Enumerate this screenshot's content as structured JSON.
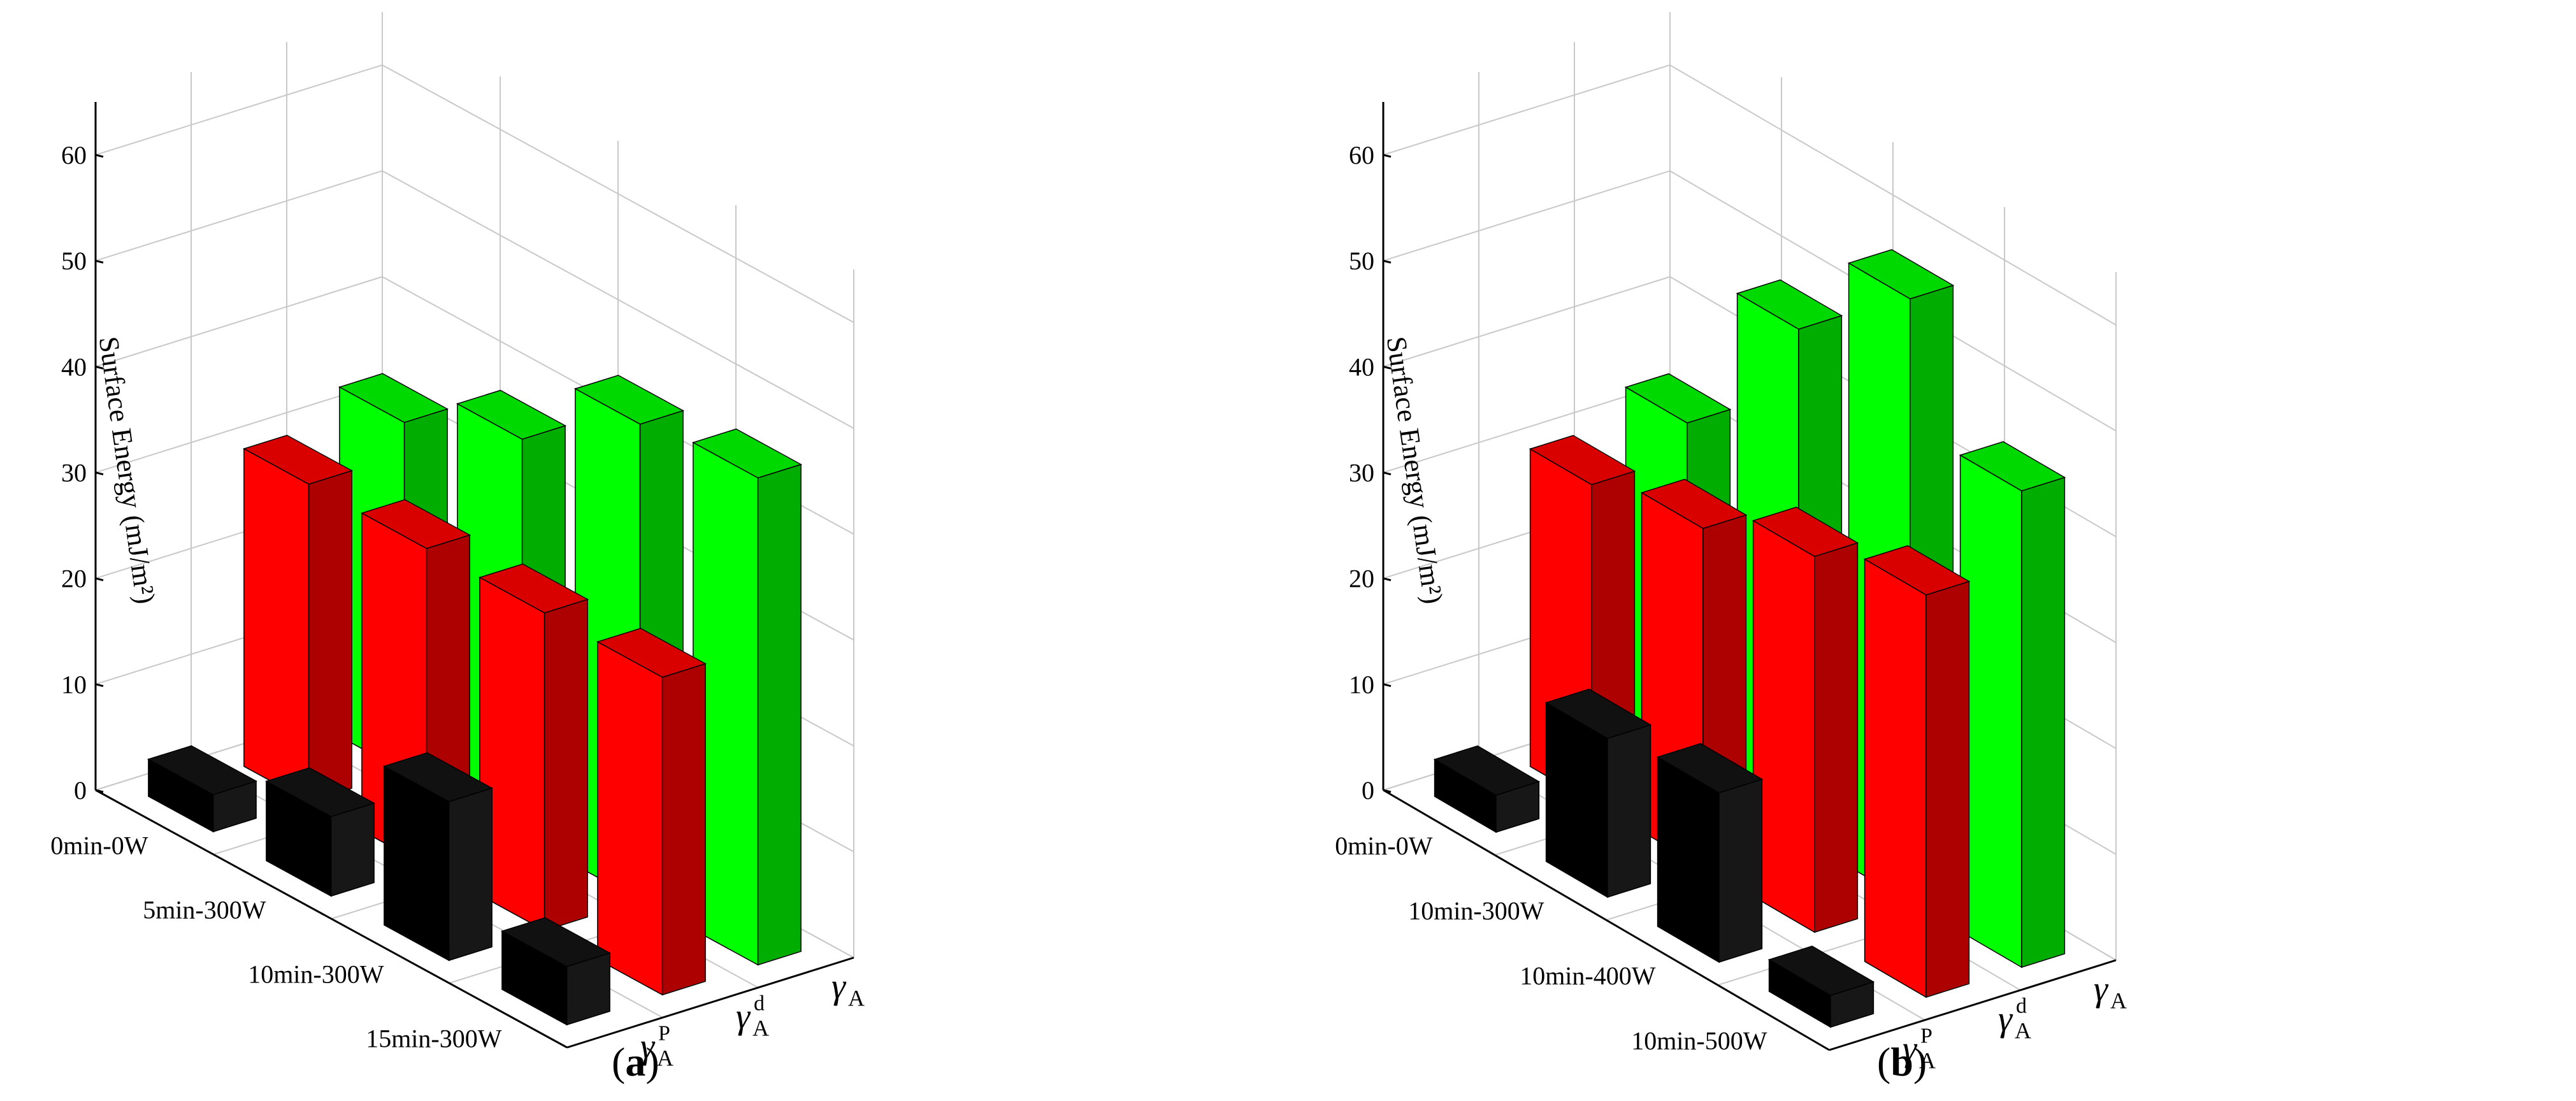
{
  "chart_data": [
    {
      "type": "bar",
      "panel_label": "a",
      "ylabel": "Surface Energy (mJ/m²)",
      "ylim": [
        0,
        65
      ],
      "yticks": [
        0,
        10,
        20,
        30,
        40,
        50,
        60
      ],
      "categories": [
        "0min-0W",
        "5min-300W",
        "10min-300W",
        "15min-300W"
      ],
      "series": [
        {
          "name": "γ_A^p",
          "color": "#000000",
          "values": [
            3.5,
            7.5,
            15,
            5.5
          ]
        },
        {
          "name": "γ_A^d",
          "color": "#ff0000",
          "values": [
            30,
            30,
            30,
            30
          ]
        },
        {
          "name": "γ_A",
          "color": "#00ff00",
          "values": [
            33,
            37.5,
            45,
            46
          ]
        }
      ],
      "grid": true
    },
    {
      "type": "bar",
      "panel_label": "b",
      "ylabel": "Surface Energy (mJ/m²)",
      "ylim": [
        0,
        65
      ],
      "yticks": [
        0,
        10,
        20,
        30,
        40,
        50,
        60
      ],
      "categories": [
        "0min-0W",
        "10min-300W",
        "10min-400W",
        "10min-500W"
      ],
      "series": [
        {
          "name": "γ_A^p",
          "color": "#000000",
          "values": [
            3.5,
            15,
            16,
            3
          ]
        },
        {
          "name": "γ_A^d",
          "color": "#ff0000",
          "values": [
            30,
            32,
            35.5,
            38
          ]
        },
        {
          "name": "γ_A",
          "color": "#00ff00",
          "values": [
            33,
            48,
            57,
            45
          ]
        }
      ],
      "grid": true
    }
  ]
}
